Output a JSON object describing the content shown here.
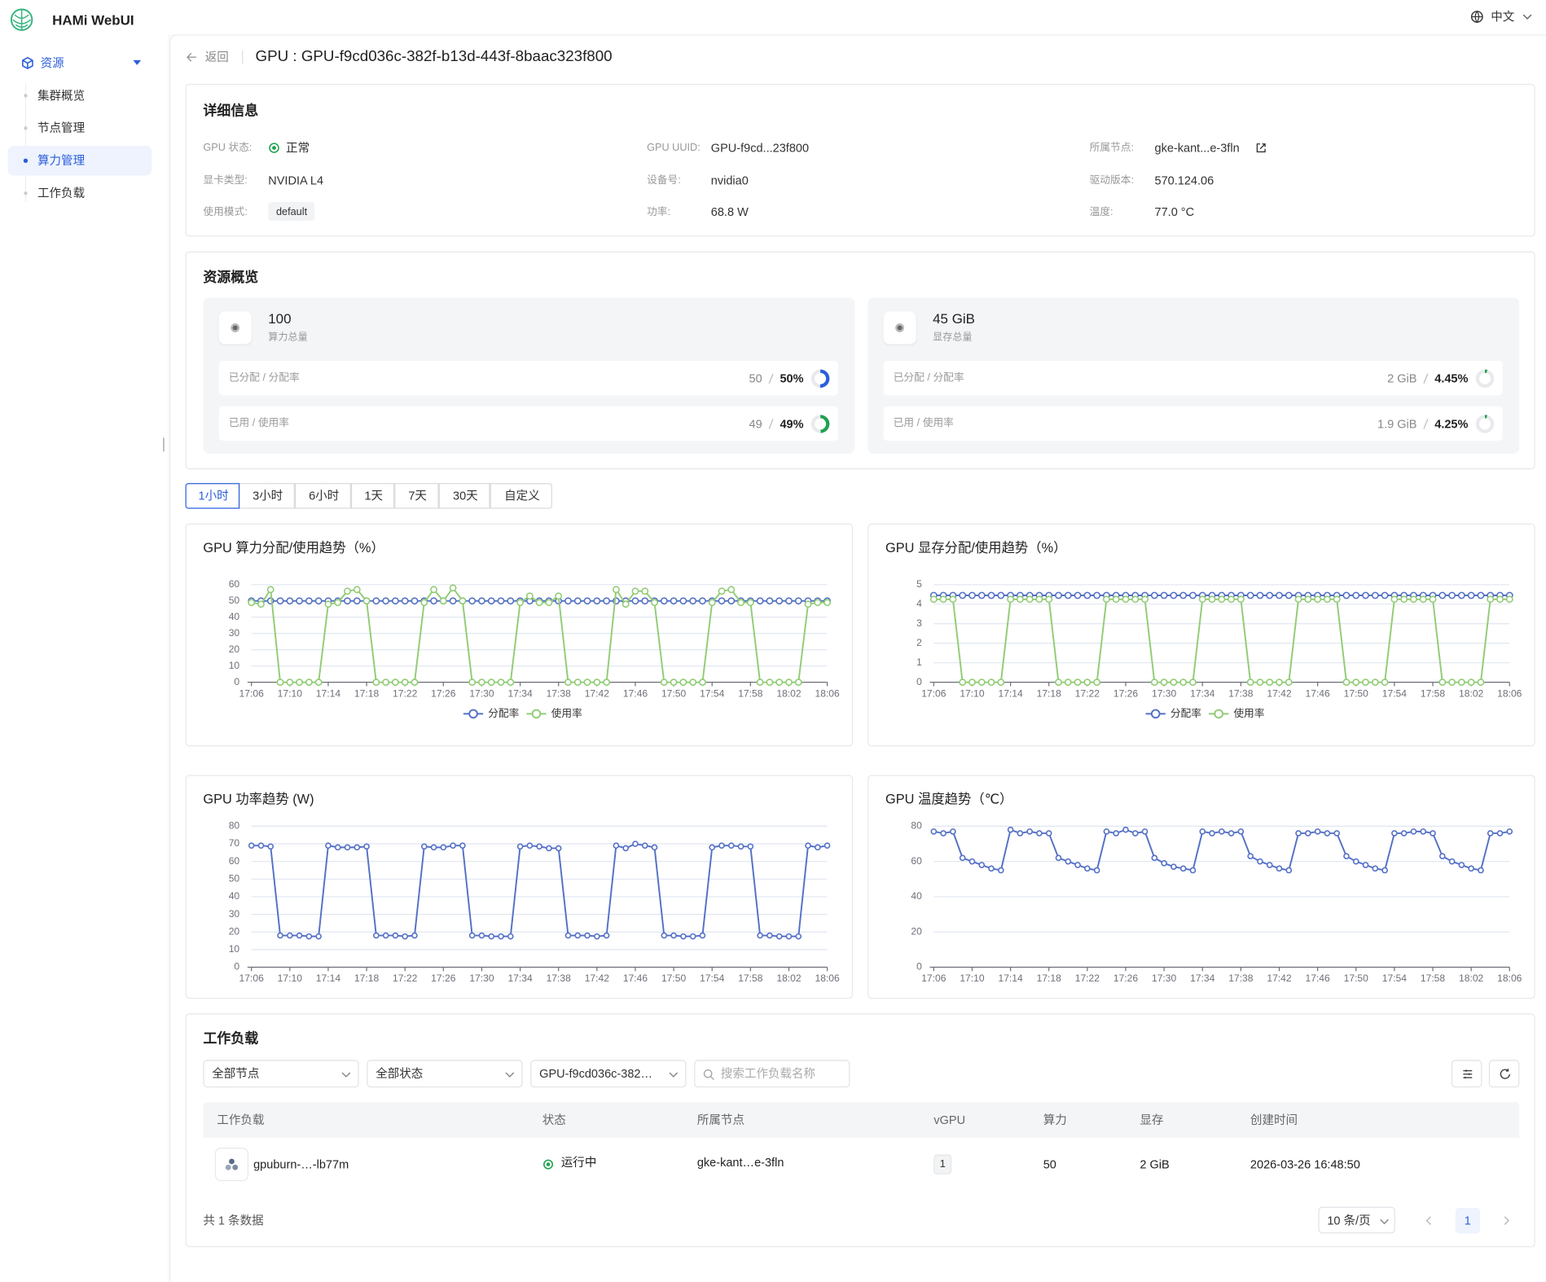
{
  "app": {
    "brand": "HAMi WebUI",
    "language": "中文"
  },
  "sidebar": {
    "group": "资源",
    "items": [
      "集群概览",
      "节点管理",
      "算力管理",
      "工作负载"
    ],
    "active": 2
  },
  "header": {
    "back": "返回",
    "title": "GPU : GPU-f9cd036c-382f-b13d-443f-8baac323f800"
  },
  "details": {
    "title": "详细信息",
    "fields": [
      {
        "label": "GPU 状态:",
        "value": "正常"
      },
      {
        "label": "GPU UUID:",
        "value": "GPU-f9cd...23f800"
      },
      {
        "label": "所属节点:",
        "value": "gke-kant...e-3fln"
      },
      {
        "label": "显卡类型:",
        "value": "NVIDIA L4"
      },
      {
        "label": "设备号:",
        "value": "nvidia0"
      },
      {
        "label": "驱动版本:",
        "value": "570.124.06"
      },
      {
        "label": "使用模式:",
        "value": "default"
      },
      {
        "label": "功率:",
        "value": "68.8 W"
      },
      {
        "label": "温度:",
        "value": "77.0 °C"
      }
    ]
  },
  "resources": {
    "title": "资源概览",
    "cards": [
      {
        "total": "100",
        "total_label": "算力总量",
        "rows": [
          {
            "label": "已分配 / 分配率",
            "amount": "50",
            "value": 50,
            "value_label": "50%",
            "color": "#2b5fd9"
          },
          {
            "label": "已用 / 使用率",
            "amount": "49",
            "value": 49,
            "value_label": "49%",
            "color": "#21a150"
          }
        ]
      },
      {
        "total": "45 GiB",
        "total_label": "显存总量",
        "rows": [
          {
            "label": "已分配 / 分配率",
            "amount": "2 GiB",
            "value": 4.45,
            "value_label": "4.45%",
            "color": "#21a150"
          },
          {
            "label": "已用 / 使用率",
            "amount": "1.9 GiB",
            "value": 4.25,
            "value_label": "4.25%",
            "color": "#21a150"
          }
        ]
      }
    ]
  },
  "time_tabs": {
    "items": [
      "1小时",
      "3小时",
      "6小时",
      "1天",
      "7天",
      "30天",
      "自定义"
    ],
    "active": 0
  },
  "chart_data": [
    {
      "type": "line",
      "title": "GPU 算力分配/使用趋势（%）",
      "categories": [
        "17:06",
        null,
        null,
        null,
        "17:10",
        null,
        null,
        null,
        "17:14",
        null,
        null,
        null,
        "17:18",
        null,
        null,
        null,
        "17:22",
        null,
        null,
        null,
        "17:26",
        null,
        null,
        null,
        "17:30",
        null,
        null,
        null,
        "17:34",
        null,
        null,
        null,
        "17:38",
        null,
        null,
        null,
        "17:42",
        null,
        null,
        null,
        "17:46",
        null,
        null,
        null,
        "17:50",
        null,
        null,
        null,
        "17:54",
        null,
        null,
        null,
        "17:58",
        null,
        null,
        null,
        "18:02",
        null,
        null,
        null,
        "18:06"
      ],
      "series": [
        {
          "name": "分配率",
          "color": "#5470c6",
          "values": [
            50,
            50,
            50,
            50,
            50,
            50,
            50,
            50,
            50,
            50,
            50,
            50,
            50,
            50,
            50,
            50,
            50,
            50,
            50,
            50,
            50,
            50,
            50,
            50,
            50,
            50,
            50,
            50,
            50,
            50,
            50,
            50,
            50,
            50,
            50,
            50,
            50,
            50,
            50,
            50,
            50,
            50,
            50,
            50,
            50,
            50,
            50,
            50,
            50,
            50,
            50,
            50,
            50,
            50,
            50,
            50,
            50,
            50,
            50,
            50,
            50
          ]
        },
        {
          "name": "使用率",
          "color": "#91cc75",
          "values": [
            49,
            48,
            57,
            0,
            0,
            0,
            0,
            0,
            48,
            49,
            56,
            57,
            50,
            0,
            0,
            0,
            0,
            0,
            49,
            57,
            50,
            58,
            50,
            0,
            0,
            0,
            0,
            0,
            49,
            53,
            49,
            49,
            53,
            0,
            0,
            0,
            0,
            0,
            57,
            48,
            56,
            56,
            49,
            0,
            0,
            0,
            0,
            0,
            49,
            56,
            57,
            49,
            49,
            0,
            0,
            0,
            0,
            0,
            48,
            49,
            49
          ]
        }
      ],
      "ylim": [
        0,
        60
      ],
      "yticks": [
        0,
        10,
        20,
        30,
        40,
        50,
        60
      ],
      "grid": true,
      "legend": "bottom"
    },
    {
      "type": "line",
      "title": "GPU 显存分配/使用趋势（%）",
      "categories": [
        "17:06",
        null,
        null,
        null,
        "17:10",
        null,
        null,
        null,
        "17:14",
        null,
        null,
        null,
        "17:18",
        null,
        null,
        null,
        "17:22",
        null,
        null,
        null,
        "17:26",
        null,
        null,
        null,
        "17:30",
        null,
        null,
        null,
        "17:34",
        null,
        null,
        null,
        "17:38",
        null,
        null,
        null,
        "17:42",
        null,
        null,
        null,
        "17:46",
        null,
        null,
        null,
        "17:50",
        null,
        null,
        null,
        "17:54",
        null,
        null,
        null,
        "17:58",
        null,
        null,
        null,
        "18:02",
        null,
        null,
        null,
        "18:06"
      ],
      "series": [
        {
          "name": "分配率",
          "color": "#5470c6",
          "values": [
            4.45,
            4.45,
            4.45,
            4.45,
            4.45,
            4.45,
            4.45,
            4.45,
            4.45,
            4.45,
            4.45,
            4.45,
            4.45,
            4.45,
            4.45,
            4.45,
            4.45,
            4.45,
            4.45,
            4.45,
            4.45,
            4.45,
            4.45,
            4.45,
            4.45,
            4.45,
            4.45,
            4.45,
            4.45,
            4.45,
            4.45,
            4.45,
            4.45,
            4.45,
            4.45,
            4.45,
            4.45,
            4.45,
            4.45,
            4.45,
            4.45,
            4.45,
            4.45,
            4.45,
            4.45,
            4.45,
            4.45,
            4.45,
            4.45,
            4.45,
            4.45,
            4.45,
            4.45,
            4.45,
            4.45,
            4.45,
            4.45,
            4.45,
            4.45,
            4.45,
            4.45
          ]
        },
        {
          "name": "使用率",
          "color": "#91cc75",
          "values": [
            4.25,
            4.25,
            4.25,
            0,
            0,
            0,
            0,
            0,
            4.25,
            4.25,
            4.25,
            4.25,
            4.25,
            0,
            0,
            0,
            0,
            0,
            4.25,
            4.25,
            4.25,
            4.25,
            4.25,
            0,
            0,
            0,
            0,
            0,
            4.25,
            4.25,
            4.25,
            4.25,
            4.25,
            0,
            0,
            0,
            0,
            0,
            4.25,
            4.25,
            4.25,
            4.25,
            4.25,
            0,
            0,
            0,
            0,
            0,
            4.25,
            4.25,
            4.25,
            4.25,
            4.25,
            0,
            0,
            0,
            0,
            0,
            4.25,
            4.25,
            4.25
          ]
        }
      ],
      "ylim": [
        0,
        5
      ],
      "yticks": [
        0,
        1,
        2,
        3,
        4,
        5
      ],
      "grid": true,
      "legend": "bottom"
    },
    {
      "type": "line",
      "title": "GPU 功率趋势 (W)",
      "categories": [
        "17:06",
        null,
        null,
        null,
        "17:10",
        null,
        null,
        null,
        "17:14",
        null,
        null,
        null,
        "17:18",
        null,
        null,
        null,
        "17:22",
        null,
        null,
        null,
        "17:26",
        null,
        null,
        null,
        "17:30",
        null,
        null,
        null,
        "17:34",
        null,
        null,
        null,
        "17:38",
        null,
        null,
        null,
        "17:42",
        null,
        null,
        null,
        "17:46",
        null,
        null,
        null,
        "17:50",
        null,
        null,
        null,
        "17:54",
        null,
        null,
        null,
        "17:58",
        null,
        null,
        null,
        "18:02",
        null,
        null,
        null,
        "18:06"
      ],
      "color": "#5470c6",
      "values": [
        69,
        69,
        68.5,
        18,
        18,
        18,
        17.5,
        17.5,
        69,
        68,
        68,
        68,
        68.5,
        18,
        18,
        18,
        17.5,
        18,
        68.5,
        68,
        68,
        69,
        69,
        18,
        18,
        17.5,
        17.5,
        17.5,
        68.5,
        69,
        68.5,
        67.5,
        67.5,
        18,
        18,
        18,
        17.5,
        18,
        69,
        67.5,
        70,
        69,
        68,
        18,
        18,
        17.5,
        17.5,
        18,
        68,
        69,
        69,
        68.5,
        68.5,
        18,
        18,
        17.5,
        17.5,
        17.5,
        69,
        68,
        69
      ],
      "ylim": [
        0,
        80
      ],
      "yticks": [
        0,
        10,
        20,
        30,
        40,
        50,
        60,
        70,
        80
      ],
      "grid": true
    },
    {
      "type": "line",
      "title": "GPU 温度趋势（℃）",
      "categories": [
        "17:06",
        null,
        null,
        null,
        "17:10",
        null,
        null,
        null,
        "17:14",
        null,
        null,
        null,
        "17:18",
        null,
        null,
        null,
        "17:22",
        null,
        null,
        null,
        "17:26",
        null,
        null,
        null,
        "17:30",
        null,
        null,
        null,
        "17:34",
        null,
        null,
        null,
        "17:38",
        null,
        null,
        null,
        "17:42",
        null,
        null,
        null,
        "17:46",
        null,
        null,
        null,
        "17:50",
        null,
        null,
        null,
        "17:54",
        null,
        null,
        null,
        "17:58",
        null,
        null,
        null,
        "18:02",
        null,
        null,
        null,
        "18:06"
      ],
      "color": "#5470c6",
      "values": [
        77,
        76,
        77,
        62,
        60,
        58,
        56,
        55,
        78,
        76,
        77,
        76,
        76,
        62,
        60,
        58,
        56,
        55,
        77,
        76,
        78,
        76,
        77,
        62,
        59,
        57,
        56,
        55,
        77,
        76,
        77,
        76,
        77,
        63,
        60,
        58,
        56,
        55,
        76,
        76,
        77,
        76,
        76,
        63,
        60,
        58,
        56,
        55,
        76,
        76,
        77,
        77,
        76,
        63,
        60,
        58,
        56,
        55,
        76,
        76,
        77
      ],
      "ylim": [
        0,
        80
      ],
      "yticks": [
        0,
        20,
        40,
        60,
        80
      ],
      "grid": true
    }
  ],
  "workloads": {
    "title": "工作负载",
    "filters": [
      "全部节点",
      "全部状态",
      "GPU-f9cd036c-382…"
    ],
    "search_placeholder": "搜索工作负载名称",
    "table": {
      "columns": [
        "工作负载",
        "状态",
        "所属节点",
        "vGPU",
        "算力",
        "显存",
        "创建时间"
      ],
      "rows": [
        [
          "gpuburn-…-lb77m",
          "运行中",
          "gke-kant…e-3fln",
          "1",
          "50",
          "2 GiB",
          "2026-03-26 16:48:50"
        ]
      ]
    },
    "total": "共 1 条数据",
    "page_size": "10 条/页",
    "page": "1"
  }
}
